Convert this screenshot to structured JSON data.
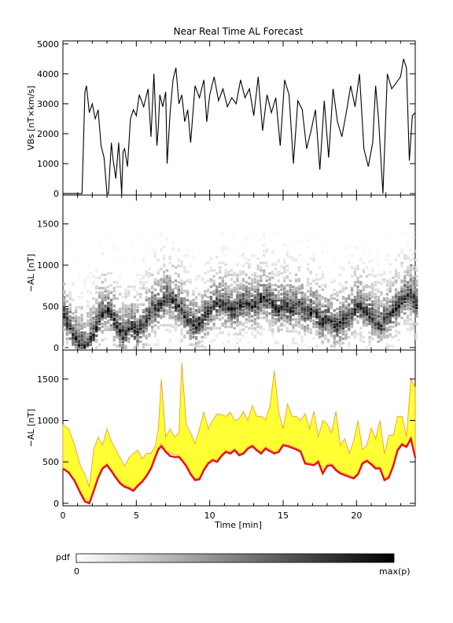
{
  "chart_data": [
    {
      "type": "line",
      "title": "Near Real Time AL Forecast",
      "ylabel": "VBs [nT×km/s]",
      "xlim": [
        0,
        24
      ],
      "ylim": [
        -50,
        5100
      ],
      "yticks": [
        "0",
        "1000",
        "2000",
        "3000",
        "4000",
        "5000"
      ],
      "series": [
        {
          "values_note_unit": "nT×km/s",
          "x": [
            0,
            1.3,
            1.5,
            1.6,
            1.8,
            2.0,
            2.2,
            2.4,
            2.6,
            2.8,
            3.0,
            3.1,
            3.3,
            3.4,
            3.6,
            3.8,
            4.0,
            4.1,
            4.2,
            4.4,
            4.6,
            4.8,
            5.0,
            5.2,
            5.5,
            5.8,
            6.0,
            6.2,
            6.4,
            6.5,
            6.6,
            6.8,
            7.0,
            7.1,
            7.3,
            7.5,
            7.7,
            7.9,
            8.1,
            8.3,
            8.5,
            8.7,
            9.0,
            9.3,
            9.6,
            9.8,
            10.0,
            10.3,
            10.6,
            10.9,
            11.2,
            11.5,
            11.8,
            12.1,
            12.4,
            12.7,
            13.0,
            13.3,
            13.6,
            13.9,
            14.2,
            14.5,
            14.8,
            15.1,
            15.4,
            15.7,
            16.0,
            16.3,
            16.6,
            16.9,
            17.2,
            17.5,
            17.8,
            18.1,
            18.4,
            18.7,
            19.0,
            19.3,
            19.6,
            19.9,
            20.2,
            20.5,
            20.8,
            21.1,
            21.3,
            21.5,
            21.8,
            22.1,
            22.4,
            22.7,
            23.0,
            23.2,
            23.4,
            23.6,
            23.8,
            24.0
          ],
          "y": [
            0,
            0,
            3400,
            3600,
            2700,
            3000,
            2500,
            2800,
            1600,
            1200,
            0,
            0,
            1700,
            1200,
            500,
            1700,
            0,
            1400,
            1500,
            900,
            2500,
            2800,
            2600,
            3300,
            2900,
            3500,
            1900,
            4000,
            1600,
            2200,
            3300,
            2900,
            3400,
            1000,
            2700,
            3800,
            4200,
            3000,
            3300,
            2400,
            2800,
            1700,
            3600,
            3200,
            3800,
            2400,
            3300,
            3900,
            3100,
            3500,
            2900,
            3200,
            3000,
            3800,
            3200,
            3500,
            2600,
            3900,
            2100,
            3300,
            2700,
            3200,
            1600,
            3800,
            3300,
            1000,
            3100,
            2800,
            1500,
            2100,
            2800,
            800,
            3100,
            1200,
            3500,
            2400,
            1900,
            2700,
            3600,
            2900,
            4000,
            1500,
            900,
            1700,
            3600,
            2500,
            0,
            4000,
            3500,
            3700,
            3900,
            4500,
            4200,
            1100,
            2600,
            2700
          ]
        }
      ]
    },
    {
      "type": "heatmap",
      "ylabel": "−AL [nT]",
      "xlim": [
        0,
        24
      ],
      "ylim": [
        -30,
        1850
      ],
      "yticks": [
        "0",
        "500",
        "1000",
        "1500"
      ],
      "colorbar": {
        "label": "pdf",
        "min_label": "0",
        "max_label": "max(p)"
      },
      "mode_curve": {
        "x": [
          0,
          0.5,
          1.0,
          1.5,
          2.0,
          2.5,
          3.0,
          3.5,
          4.0,
          4.5,
          5.0,
          5.5,
          6.0,
          6.5,
          7.0,
          7.5,
          8.0,
          8.5,
          9.0,
          9.5,
          10.0,
          10.5,
          11.0,
          11.5,
          12.0,
          12.5,
          13.0,
          13.5,
          14.0,
          14.5,
          15.0,
          15.5,
          16.0,
          16.5,
          17.0,
          17.5,
          18.0,
          18.5,
          19.0,
          19.5,
          20.0,
          20.5,
          21.0,
          21.5,
          22.0,
          22.5,
          23.0,
          23.5,
          24.0
        ],
        "y": [
          400,
          200,
          50,
          30,
          150,
          400,
          450,
          300,
          150,
          250,
          200,
          300,
          450,
          500,
          600,
          550,
          450,
          300,
          250,
          350,
          450,
          550,
          500,
          450,
          500,
          550,
          500,
          600,
          550,
          450,
          500,
          450,
          500,
          400,
          450,
          300,
          350,
          250,
          300,
          400,
          500,
          450,
          350,
          250,
          350,
          450,
          550,
          650,
          500
        ]
      }
    },
    {
      "type": "area",
      "ylabel": "−AL [nT]",
      "xlabel": "Time [min]",
      "xlim": [
        0,
        24
      ],
      "ylim": [
        -30,
        1850
      ],
      "xticks": [
        "0",
        "5",
        "10",
        "15",
        "20"
      ],
      "yticks": [
        "0",
        "500",
        "1000",
        "1500"
      ],
      "colors": {
        "band": "#ffff33",
        "band_edge": "#f0a030",
        "forecast": "#e81010"
      },
      "x": [
        0,
        0.4,
        0.8,
        1.2,
        1.5,
        1.8,
        2.1,
        2.4,
        2.7,
        3.0,
        3.3,
        3.6,
        3.9,
        4.2,
        4.5,
        4.8,
        5.1,
        5.4,
        5.7,
        6.0,
        6.3,
        6.5,
        6.7,
        7.0,
        7.3,
        7.6,
        7.9,
        8.1,
        8.4,
        8.7,
        9.0,
        9.3,
        9.6,
        9.9,
        10.2,
        10.5,
        10.8,
        11.1,
        11.4,
        11.7,
        12.0,
        12.3,
        12.6,
        12.9,
        13.2,
        13.5,
        13.8,
        14.1,
        14.4,
        14.7,
        15.0,
        15.3,
        15.6,
        15.9,
        16.2,
        16.5,
        16.8,
        17.1,
        17.4,
        17.7,
        18.0,
        18.3,
        18.6,
        18.9,
        19.2,
        19.5,
        19.8,
        20.1,
        20.4,
        20.7,
        21.0,
        21.3,
        21.6,
        21.9,
        22.2,
        22.5,
        22.8,
        23.1,
        23.4,
        23.7,
        24.0
      ],
      "forecast": [
        420,
        370,
        270,
        120,
        20,
        0,
        150,
        310,
        420,
        460,
        390,
        310,
        240,
        200,
        180,
        150,
        210,
        260,
        330,
        420,
        560,
        650,
        690,
        620,
        570,
        560,
        560,
        520,
        450,
        350,
        280,
        290,
        400,
        480,
        520,
        500,
        570,
        620,
        600,
        640,
        580,
        600,
        660,
        690,
        640,
        600,
        660,
        630,
        600,
        620,
        700,
        690,
        670,
        650,
        620,
        480,
        470,
        460,
        500,
        360,
        450,
        460,
        400,
        360,
        340,
        320,
        300,
        350,
        480,
        510,
        470,
        420,
        420,
        280,
        310,
        450,
        640,
        710,
        680,
        780,
        550
      ],
      "upper": [
        950,
        900,
        700,
        450,
        350,
        200,
        650,
        800,
        700,
        900,
        750,
        650,
        550,
        450,
        550,
        600,
        640,
        540,
        600,
        600,
        700,
        900,
        1500,
        800,
        900,
        800,
        850,
        1700,
        950,
        850,
        720,
        900,
        1100,
        900,
        1000,
        1080,
        1070,
        1050,
        1100,
        1000,
        1020,
        1110,
        1000,
        1180,
        1050,
        1050,
        1010,
        1170,
        1600,
        1100,
        900,
        1200,
        1050,
        1050,
        1000,
        1080,
        900,
        1110,
        800,
        1000,
        960,
        850,
        1110,
        700,
        780,
        600,
        750,
        1000,
        650,
        700,
        910,
        780,
        1000,
        600,
        820,
        820,
        1050,
        1050,
        800,
        1500,
        1400
      ],
      "lower": [
        420,
        370,
        280,
        140,
        50,
        20,
        160,
        330,
        440,
        480,
        410,
        330,
        260,
        220,
        200,
        170,
        230,
        280,
        350,
        440,
        590,
        680,
        720,
        640,
        600,
        590,
        580,
        540,
        470,
        370,
        300,
        310,
        420,
        500,
        540,
        520,
        590,
        640,
        620,
        660,
        600,
        620,
        680,
        710,
        660,
        620,
        680,
        650,
        620,
        640,
        720,
        710,
        690,
        670,
        640,
        500,
        490,
        480,
        520,
        380,
        470,
        480,
        420,
        380,
        360,
        340,
        320,
        370,
        500,
        530,
        490,
        440,
        440,
        300,
        330,
        470,
        660,
        730,
        700,
        800,
        570
      ]
    }
  ]
}
